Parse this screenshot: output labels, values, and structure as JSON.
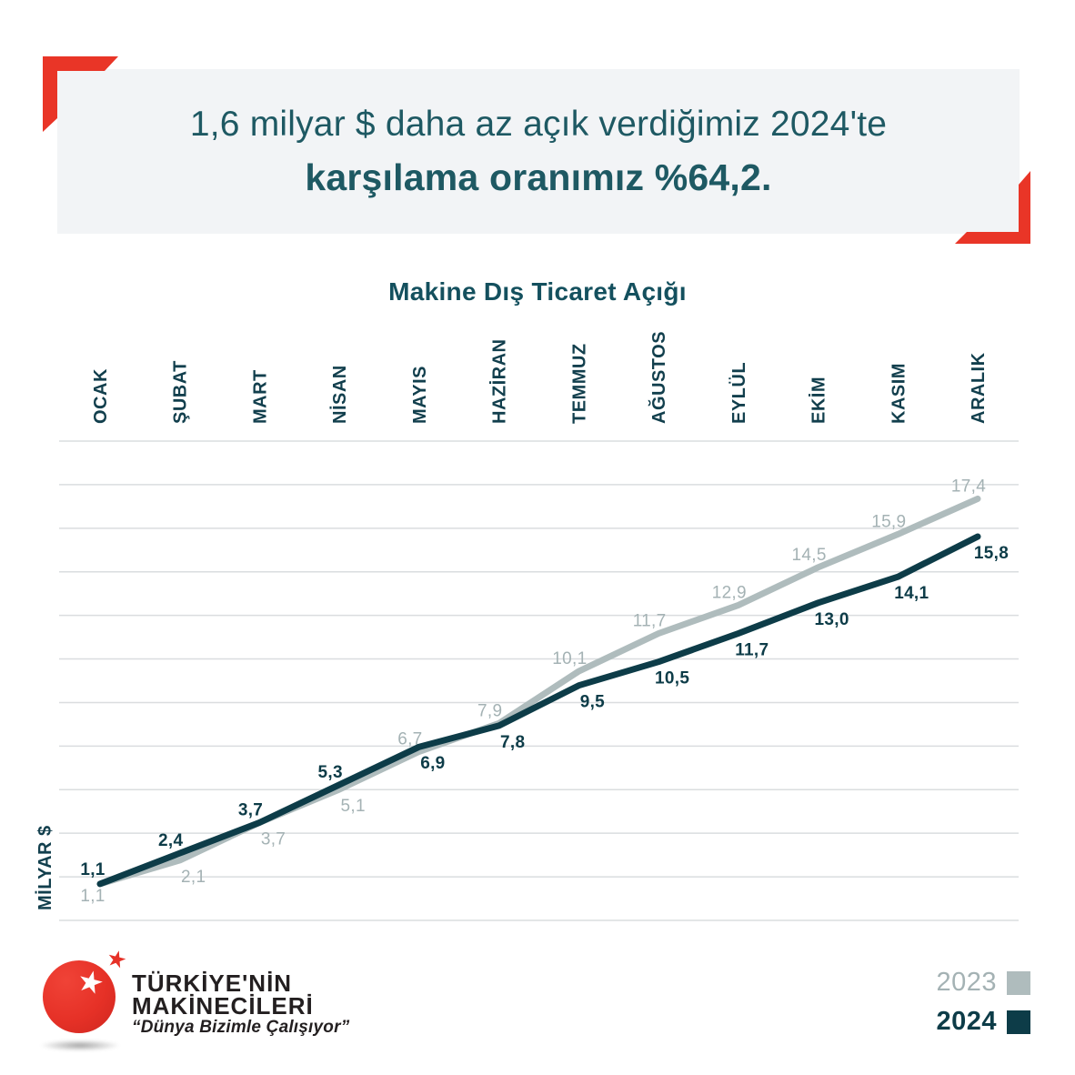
{
  "header": {
    "line1": "1,6 milyar $ daha az açık verdiğimiz 2024'te",
    "line2": "karşılama oranımız %64,2."
  },
  "chart_data": {
    "type": "line",
    "title": "Makine Dış Ticaret Açığı",
    "ylabel": "MİLYAR $",
    "categories": [
      "OCAK",
      "ŞUBAT",
      "MART",
      "NİSAN",
      "MAYIS",
      "HAZİRAN",
      "TEMMUZ",
      "AĞUSTOS",
      "EYLÜL",
      "EKİM",
      "KASIM",
      "ARALIK"
    ],
    "series": [
      {
        "name": "2023",
        "color": "#AFBCBD",
        "label_color": "#A4B2B4",
        "bold_labels": false,
        "values": [
          1.1,
          2.1,
          3.7,
          5.1,
          6.7,
          7.9,
          10.1,
          11.7,
          12.9,
          14.5,
          15.9,
          17.4
        ],
        "labels": [
          "1,1",
          "2,1",
          "3,7",
          "5,1",
          "6,7",
          "7,9",
          "10,1",
          "11,7",
          "12,9",
          "14,5",
          "15,9",
          "17,4"
        ],
        "label_side": [
          "below",
          "below",
          "below",
          "below",
          "above",
          "above",
          "above",
          "above",
          "above",
          "above",
          "above",
          "above"
        ]
      },
      {
        "name": "2024",
        "color": "#0D3C48",
        "label_color": "#0D3C48",
        "bold_labels": true,
        "values": [
          1.1,
          2.4,
          3.7,
          5.3,
          6.9,
          7.8,
          9.5,
          10.5,
          11.7,
          13.0,
          14.1,
          15.8
        ],
        "labels": [
          "1,1",
          "2,4",
          "3,7",
          "5,3",
          "6,9",
          "7,8",
          "9,5",
          "10,5",
          "11,7",
          "13,0",
          "14,1",
          "15,8"
        ],
        "label_side": [
          "above",
          "above",
          "above",
          "above",
          "below",
          "below",
          "below",
          "below",
          "below",
          "below",
          "below",
          "below"
        ]
      }
    ],
    "grid": {
      "lines": 12,
      "on": true
    },
    "ylim": [
      0,
      20
    ],
    "legend_position": "bottom-right"
  },
  "legend": {
    "items": [
      {
        "label": "2023",
        "color": "#AFBCBD",
        "text_color": "#A4B2B4",
        "bold": false
      },
      {
        "label": "2024",
        "color": "#0D3C48",
        "text_color": "#0D3C48",
        "bold": true
      }
    ]
  },
  "logo": {
    "name_line1": "TÜRKİYE'NİN",
    "name_line2": "MAKİNECİLERİ",
    "tagline": "“Dünya Bizimle Çalışıyor”",
    "star_glyph": "★"
  },
  "colors": {
    "accent_red": "#E93527",
    "teal_dark": "#0D3C48",
    "teal_text": "#1E5963",
    "gray_2023": "#AFBCBD",
    "banner_bg": "#F2F4F6",
    "grid_line": "#DADDDF"
  }
}
